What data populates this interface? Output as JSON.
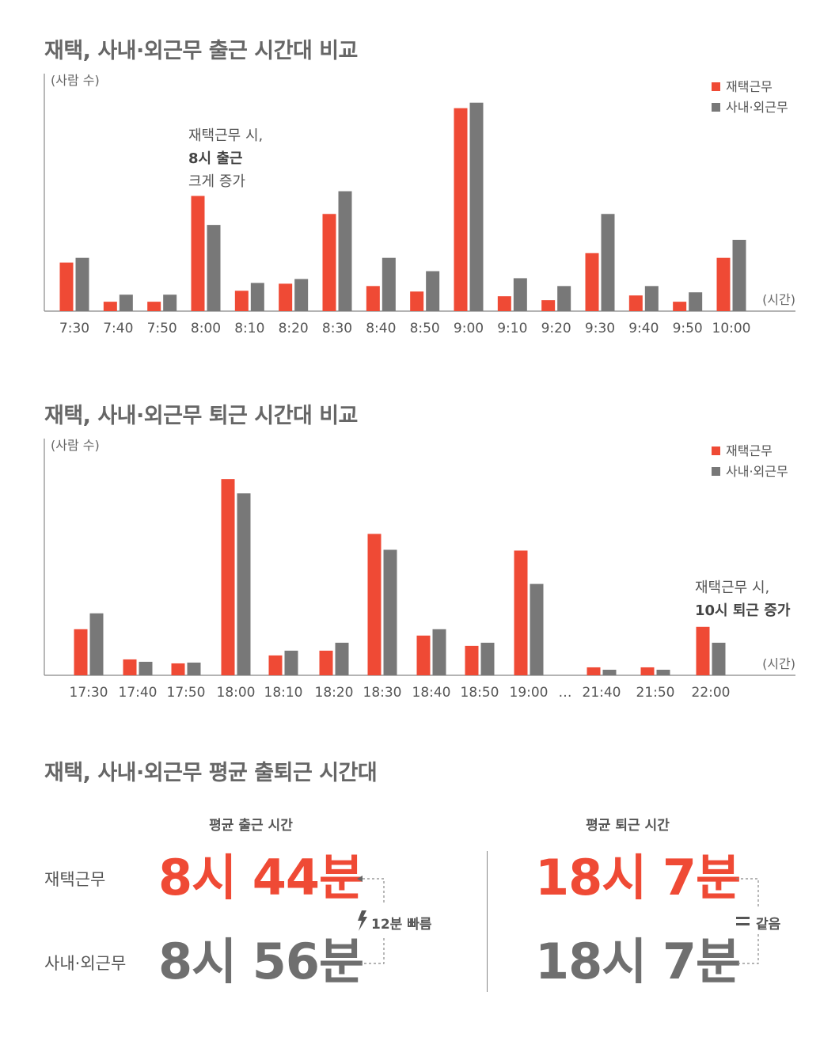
{
  "colors": {
    "remote": "#ef4a35",
    "office": "#787878",
    "axis": "#888888"
  },
  "chart_data": [
    {
      "type": "bar",
      "title": "재택, 사내·외근무 출근 시간대 비교",
      "ylabel": "(사람 수)",
      "xlabel": "(시간)",
      "categories": [
        "7:30",
        "7:40",
        "7:50",
        "8:00",
        "8:10",
        "8:20",
        "8:30",
        "8:40",
        "8:50",
        "9:00",
        "9:10",
        "9:20",
        "9:30",
        "9:40",
        "9:50",
        "10:00"
      ],
      "series": [
        {
          "name": "재택근무",
          "values": [
            6.2,
            1.2,
            1.2,
            14.7,
            2.6,
            3.5,
            12.4,
            3.2,
            2.5,
            25.9,
            1.9,
            1.4,
            7.4,
            2.0,
            1.2,
            6.8
          ]
        },
        {
          "name": "사내·외근무",
          "values": [
            6.8,
            2.1,
            2.1,
            11.0,
            3.6,
            4.1,
            15.3,
            6.8,
            5.1,
            26.6,
            4.2,
            3.2,
            12.4,
            3.2,
            2.4,
            9.1
          ]
        }
      ],
      "ylim": [
        0,
        29.5
      ],
      "legend": "top-right",
      "annotation": {
        "lines": [
          "재택근무 시,",
          "8시 출근",
          "크게 증가"
        ],
        "category": "8:00"
      }
    },
    {
      "type": "bar",
      "title": "재택, 사내·외근무 퇴근 시간대 비교",
      "ylabel": "(사람 수)",
      "xlabel": "(시간)",
      "categories": [
        "17:30",
        "17:40",
        "17:50",
        "18:00",
        "18:10",
        "18:20",
        "18:30",
        "18:40",
        "18:50",
        "19:00",
        "…",
        "21:40",
        "21:50",
        "22:00"
      ],
      "series": [
        {
          "name": "재택근무",
          "values": [
            5.8,
            2.0,
            1.5,
            24.7,
            2.5,
            3.1,
            17.8,
            5.0,
            3.7,
            15.7,
            null,
            1.0,
            1.0,
            6.1
          ]
        },
        {
          "name": "사내·외근무",
          "values": [
            7.8,
            1.7,
            1.6,
            22.9,
            3.1,
            4.1,
            15.8,
            5.8,
            4.1,
            11.5,
            null,
            0.7,
            0.7,
            4.1
          ]
        }
      ],
      "ylim": [
        0,
        29
      ],
      "legend": "top-right",
      "annotation": {
        "lines": [
          "재택근무 시,",
          "10시 퇴근 증가"
        ],
        "category": "22:00"
      }
    }
  ],
  "summary": {
    "title": "재택, 사내·외근무 평균 출퇴근 시간대",
    "arrive_head": "평균 출근 시간",
    "leave_head": "평균 퇴근 시간",
    "row_remote": "재택근무",
    "row_office": "사내·외근무",
    "arrive_remote": "8시 44분",
    "arrive_office": "8시 56분",
    "leave_remote": "18시 7분",
    "leave_office": "18시 7분",
    "arrive_note": "12분 빠름",
    "leave_note": "같음"
  }
}
